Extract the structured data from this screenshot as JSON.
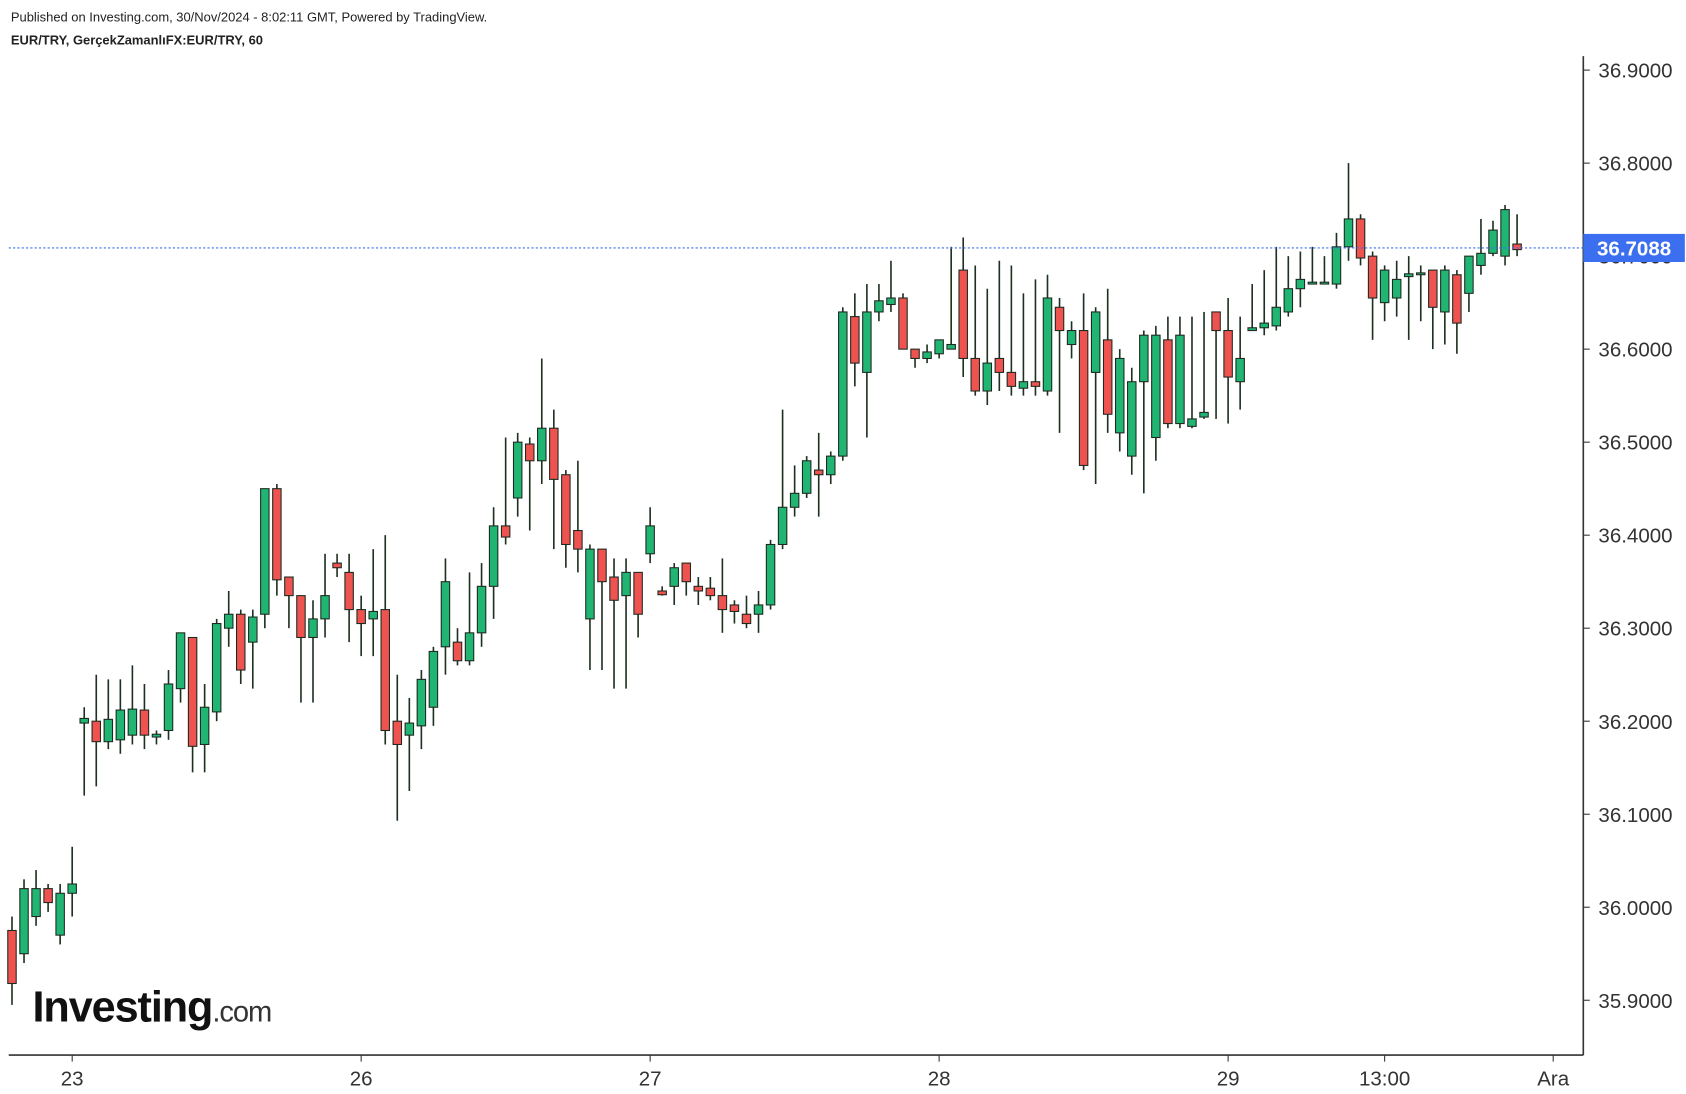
{
  "header": {
    "published": "Published on Investing.com, 30/Nov/2024 - 8:02:11 GMT, Powered by TradingView.",
    "symbol": "EUR/TRY, GerçekZamanlıFX:EUR/TRY, 60"
  },
  "logo": {
    "brand": "Investing",
    "suffix": ".com"
  },
  "chart_data": {
    "type": "candlestick",
    "up_color": "#21b573",
    "down_color": "#ef5350",
    "last_price": 36.7088,
    "last_price_color": "#3b6ff0",
    "open": [
      35.975,
      35.95,
      35.99,
      36.02,
      35.97,
      36.015,
      36.198,
      36.2,
      36.178,
      36.18,
      36.185,
      36.212,
      36.183,
      36.19,
      36.235,
      36.29,
      36.175,
      36.21,
      36.3,
      36.315,
      36.285,
      36.315,
      36.45,
      36.355,
      36.335,
      36.29,
      36.31,
      36.37,
      36.36,
      36.32,
      36.31,
      36.32,
      36.2,
      36.185,
      36.195,
      36.215,
      36.28,
      36.285,
      36.265,
      36.295,
      36.345,
      36.41,
      36.44,
      36.498,
      36.48,
      36.515,
      36.465,
      36.405,
      36.31,
      36.385,
      36.355,
      36.335,
      36.36,
      36.38,
      36.34,
      36.345,
      36.37,
      36.345,
      36.343,
      36.335,
      36.325,
      36.315,
      36.315,
      36.325,
      36.39,
      36.43,
      36.445,
      36.47,
      36.465,
      36.485,
      36.635,
      36.575,
      36.64,
      36.648,
      36.655,
      36.6,
      36.59,
      36.595,
      36.6,
      36.685,
      36.59,
      36.555,
      36.59,
      36.575,
      36.558,
      36.565,
      36.555,
      36.645,
      36.605,
      36.62,
      36.575,
      36.61,
      36.51,
      36.485,
      36.565,
      36.505,
      36.61,
      36.52,
      36.517,
      36.527,
      36.64,
      36.62,
      36.565,
      36.62,
      36.623,
      36.625,
      36.64,
      36.665,
      36.67,
      36.67,
      36.67,
      36.71,
      36.74,
      36.7,
      36.65,
      36.655,
      36.678,
      36.68,
      36.685,
      36.64,
      36.68,
      36.66,
      36.69,
      36.703,
      36.7,
      36.713
    ],
    "high": [
      35.99,
      36.03,
      36.04,
      36.025,
      36.025,
      36.065,
      36.215,
      36.25,
      36.245,
      36.245,
      36.26,
      36.24,
      36.19,
      36.255,
      36.295,
      36.29,
      36.24,
      36.31,
      36.34,
      36.32,
      36.32,
      36.45,
      36.455,
      36.355,
      36.335,
      36.33,
      36.38,
      36.38,
      36.38,
      36.335,
      36.385,
      36.4,
      36.25,
      36.225,
      36.255,
      36.28,
      36.375,
      36.3,
      36.36,
      36.37,
      36.43,
      36.505,
      36.51,
      36.505,
      36.59,
      36.535,
      36.47,
      36.48,
      36.39,
      36.385,
      36.375,
      36.375,
      36.36,
      36.43,
      36.345,
      36.37,
      36.37,
      36.355,
      36.355,
      36.375,
      36.33,
      36.335,
      36.34,
      36.395,
      36.535,
      36.475,
      36.485,
      36.51,
      36.49,
      36.645,
      36.66,
      36.67,
      36.67,
      36.695,
      36.66,
      36.6,
      36.605,
      36.61,
      36.71,
      36.72,
      36.69,
      36.665,
      36.695,
      36.69,
      36.66,
      36.675,
      36.68,
      36.655,
      36.63,
      36.66,
      36.645,
      36.665,
      36.6,
      36.58,
      36.62,
      36.625,
      36.635,
      36.635,
      36.635,
      36.64,
      36.64,
      36.655,
      36.635,
      36.67,
      36.685,
      36.71,
      36.7,
      36.705,
      36.71,
      36.7,
      36.725,
      36.8,
      36.745,
      36.705,
      36.69,
      36.695,
      36.7,
      36.69,
      36.685,
      36.69,
      36.685,
      36.7,
      36.74,
      36.738,
      36.755,
      36.745
    ],
    "low": [
      35.895,
      35.94,
      35.98,
      35.995,
      35.96,
      35.99,
      36.12,
      36.13,
      36.17,
      36.165,
      36.175,
      36.17,
      36.175,
      36.18,
      36.22,
      36.145,
      36.145,
      36.2,
      36.28,
      36.24,
      36.235,
      36.3,
      36.335,
      36.3,
      36.22,
      36.22,
      36.29,
      36.355,
      36.285,
      36.27,
      36.27,
      36.175,
      36.093,
      36.125,
      36.17,
      36.195,
      36.25,
      36.26,
      36.26,
      36.28,
      36.31,
      36.39,
      36.42,
      36.405,
      36.455,
      36.385,
      36.365,
      36.36,
      36.255,
      36.255,
      36.235,
      36.235,
      36.29,
      36.37,
      36.335,
      36.325,
      36.335,
      36.325,
      36.33,
      36.295,
      36.305,
      36.3,
      36.295,
      36.32,
      36.385,
      36.42,
      36.44,
      36.42,
      36.455,
      36.48,
      36.56,
      36.505,
      36.63,
      36.64,
      36.6,
      36.58,
      36.585,
      36.59,
      36.6,
      36.57,
      36.55,
      36.54,
      36.555,
      36.55,
      36.55,
      36.55,
      36.55,
      36.51,
      36.59,
      36.47,
      36.455,
      36.51,
      36.49,
      36.465,
      36.445,
      36.48,
      36.515,
      36.515,
      36.515,
      36.525,
      36.525,
      36.52,
      36.535,
      36.62,
      36.615,
      36.62,
      36.635,
      36.645,
      36.67,
      36.67,
      36.665,
      36.695,
      36.69,
      36.61,
      36.63,
      36.635,
      36.61,
      36.63,
      36.6,
      36.605,
      36.595,
      36.64,
      36.68,
      36.7,
      36.69,
      36.7
    ],
    "close": [
      35.918,
      36.02,
      36.02,
      36.005,
      36.015,
      36.025,
      36.203,
      36.178,
      36.202,
      36.212,
      36.213,
      36.185,
      36.186,
      36.24,
      36.295,
      36.173,
      36.215,
      36.305,
      36.315,
      36.255,
      36.312,
      36.45,
      36.352,
      36.335,
      36.29,
      36.31,
      36.335,
      36.365,
      36.32,
      36.305,
      36.318,
      36.19,
      36.175,
      36.198,
      36.245,
      36.275,
      36.35,
      36.265,
      36.295,
      36.345,
      36.41,
      36.398,
      36.5,
      36.48,
      36.515,
      36.46,
      36.39,
      36.385,
      36.385,
      36.35,
      36.33,
      36.36,
      36.315,
      36.41,
      36.336,
      36.365,
      36.35,
      36.34,
      36.335,
      36.32,
      36.318,
      36.305,
      36.325,
      36.39,
      36.43,
      36.445,
      36.48,
      36.465,
      36.485,
      36.64,
      36.585,
      36.64,
      36.652,
      36.655,
      36.6,
      36.59,
      36.597,
      36.61,
      36.605,
      36.59,
      36.555,
      36.585,
      36.575,
      36.56,
      36.565,
      36.56,
      36.655,
      36.62,
      36.62,
      36.475,
      36.64,
      36.53,
      36.59,
      36.565,
      36.615,
      36.615,
      36.52,
      36.615,
      36.525,
      36.532,
      36.62,
      36.57,
      36.59,
      36.623,
      36.628,
      36.645,
      36.665,
      36.675,
      36.672,
      36.672,
      36.71,
      36.74,
      36.698,
      36.655,
      36.685,
      36.675,
      36.681,
      36.682,
      36.645,
      36.685,
      36.628,
      36.7,
      36.703,
      36.728,
      36.75,
      36.707
    ],
    "ylim": [
      35.841,
      36.915
    ],
    "yticks": [
      {
        "value": 35.9,
        "label": "35.9000"
      },
      {
        "value": 36.0,
        "label": "36.0000"
      },
      {
        "value": 36.1,
        "label": "36.1000"
      },
      {
        "value": 36.2,
        "label": "36.2000"
      },
      {
        "value": 36.3,
        "label": "36.3000"
      },
      {
        "value": 36.4,
        "label": "36.4000"
      },
      {
        "value": 36.5,
        "label": "36.5000"
      },
      {
        "value": 36.6,
        "label": "36.6000"
      },
      {
        "value": 36.7,
        "label": "36.7000"
      },
      {
        "value": 36.8,
        "label": "36.8000"
      },
      {
        "value": 36.9,
        "label": "36.9000"
      }
    ],
    "xlim": [
      -0.27,
      130.5
    ],
    "xticks": [
      {
        "value": 5,
        "label": "23"
      },
      {
        "value": 29,
        "label": "26"
      },
      {
        "value": 53,
        "label": "27"
      },
      {
        "value": 77,
        "label": "28"
      },
      {
        "value": 101,
        "label": "29"
      },
      {
        "value": 114,
        "label": "13:00"
      },
      {
        "value": 128,
        "label": "Ara"
      }
    ]
  }
}
